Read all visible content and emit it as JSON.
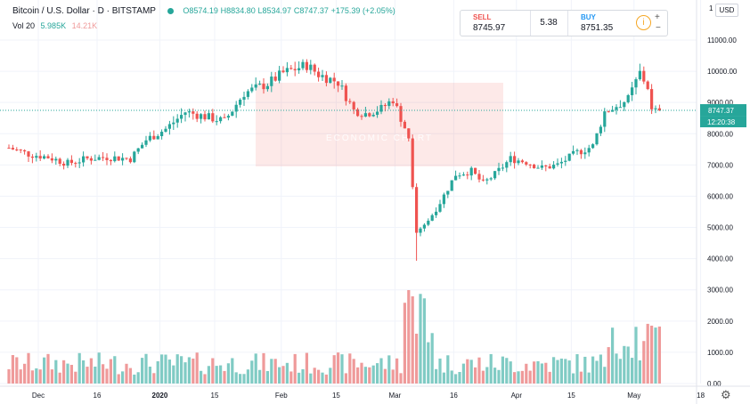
{
  "header": {
    "symbol": "Bitcoin / U.S. Dollar · D · BITSTAMP",
    "open": "O8574.19",
    "high": "H8834.80",
    "low": "L8534.97",
    "close": "C8747.37",
    "change": "+175.39 (+2.05%)"
  },
  "volume_legend": {
    "label": "Vol 20",
    "value1": "5.985K",
    "value2": "14.21K"
  },
  "trade_panel": {
    "sell_label": "SELL",
    "sell_price": "8745.97",
    "spread": "5.38",
    "buy_label": "BUY",
    "buy_price": "8751.35",
    "plus": "+",
    "minus": "−",
    "info": "i"
  },
  "price_axis": {
    "currency": "USD",
    "top_tick": "1",
    "ticks": [
      "11000.00",
      "10000.00",
      "9000.00",
      "8000.00",
      "7000.00",
      "6000.00",
      "5000.00",
      "4000.00",
      "3000.00",
      "2000.00",
      "1000.00",
      "0.00"
    ],
    "current_price": "8747.37",
    "countdown": "12:20:38"
  },
  "time_axis": {
    "labels": [
      {
        "text": "Dec",
        "day": 0
      },
      {
        "text": "16",
        "day": 15
      },
      {
        "text": "2020",
        "day": 31
      },
      {
        "text": "15",
        "day": 45
      },
      {
        "text": "Feb",
        "day": 62
      },
      {
        "text": "15",
        "day": 76
      },
      {
        "text": "Mar",
        "day": 91
      },
      {
        "text": "16",
        "day": 106
      },
      {
        "text": "Apr",
        "day": 122
      },
      {
        "text": "15",
        "day": 136
      },
      {
        "text": "May",
        "day": 152
      },
      {
        "text": "18",
        "day": 169
      }
    ]
  },
  "watermark": {
    "text": "ECONOMIC CHART"
  },
  "colors": {
    "up": "#26a69a",
    "down": "#ef5350",
    "vol_up": "#80cbc4",
    "vol_down": "#ef9a9a",
    "grid": "#f0f3fa",
    "price_line": "#26a69a",
    "countdown_bg": "#26a69a"
  },
  "icons": {
    "settings": "gear-icon",
    "legend_dot": "status-dot-icon",
    "info": "info-icon"
  },
  "chart_data": {
    "type": "candlestick",
    "ylim": [
      0,
      11600
    ],
    "first_day_label": "Dec 1",
    "keypoints": [
      [
        0,
        7550
      ],
      [
        5,
        7350
      ],
      [
        10,
        7250
      ],
      [
        15,
        7050
      ],
      [
        20,
        7200
      ],
      [
        25,
        7250
      ],
      [
        31,
        7200
      ],
      [
        35,
        7800
      ],
      [
        40,
        8150
      ],
      [
        45,
        8700
      ],
      [
        50,
        8550
      ],
      [
        55,
        8400
      ],
      [
        60,
        9300
      ],
      [
        66,
        9600
      ],
      [
        70,
        9950
      ],
      [
        76,
        10200
      ],
      [
        79,
        9900
      ],
      [
        84,
        9650
      ],
      [
        88,
        8750
      ],
      [
        91,
        8650
      ],
      [
        95,
        8800
      ],
      [
        98,
        9100
      ],
      [
        102,
        7900
      ],
      [
        104,
        4900
      ],
      [
        107,
        5200
      ],
      [
        110,
        5800
      ],
      [
        114,
        6700
      ],
      [
        118,
        6800
      ],
      [
        121,
        6400
      ],
      [
        124,
        6700
      ],
      [
        128,
        7200
      ],
      [
        132,
        7100
      ],
      [
        136,
        6900
      ],
      [
        140,
        7000
      ],
      [
        145,
        7400
      ],
      [
        149,
        7600
      ],
      [
        152,
        8700
      ],
      [
        155,
        8900
      ],
      [
        158,
        9100
      ],
      [
        161,
        9950
      ],
      [
        163,
        9500
      ],
      [
        164,
        8700
      ],
      [
        166,
        8747
      ]
    ],
    "volume_range_k": [
      0,
      14.21
    ]
  }
}
